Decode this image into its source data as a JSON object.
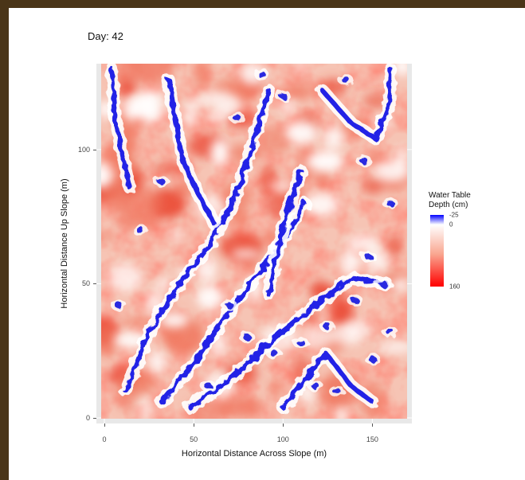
{
  "chart_data": {
    "type": "heatmap",
    "title": "Day: 42",
    "xlabel": "Horizontal Distance Across Slope (m)",
    "ylabel": "Horizontal Distance Up Slope (m)",
    "xlim": [
      0,
      165
    ],
    "ylim": [
      0,
      132
    ],
    "x_ticks": [
      0,
      50,
      100,
      150
    ],
    "y_ticks": [
      0,
      50,
      100
    ],
    "x_tick_labels": [
      "0",
      "50",
      "100",
      "150"
    ],
    "y_tick_labels": [
      "0",
      "50",
      "100"
    ],
    "grid": true,
    "legend": {
      "title": "Water Table\nDepth (cm)",
      "position": "right",
      "min": -25,
      "max": 160,
      "labels": [
        "-25",
        "0",
        "160"
      ],
      "label_values": [
        -25,
        0,
        160
      ],
      "color_low": "#0000ff",
      "color_mid": "#ffffff",
      "color_high": "#ff0000"
    },
    "channels": [
      {
        "points": [
          [
            12,
            10
          ],
          [
            25,
            32
          ],
          [
            40,
            48
          ],
          [
            58,
            64
          ],
          [
            72,
            80
          ],
          [
            82,
            100
          ],
          [
            92,
            122
          ]
        ]
      },
      {
        "points": [
          [
            32,
            6
          ],
          [
            52,
            22
          ],
          [
            68,
            38
          ],
          [
            84,
            52
          ],
          [
            100,
            66
          ],
          [
            112,
            80
          ]
        ]
      },
      {
        "points": [
          [
            48,
            4
          ],
          [
            70,
            14
          ],
          [
            92,
            28
          ],
          [
            118,
            42
          ],
          [
            138,
            52
          ],
          [
            158,
            50
          ]
        ]
      },
      {
        "points": [
          [
            122,
            122
          ],
          [
            138,
            110
          ],
          [
            152,
            104
          ],
          [
            160,
            118
          ],
          [
            160,
            130
          ]
        ]
      },
      {
        "points": [
          [
            62,
            72
          ],
          [
            52,
            84
          ],
          [
            44,
            96
          ],
          [
            40,
            110
          ],
          [
            36,
            126
          ]
        ]
      },
      {
        "points": [
          [
            92,
            46
          ],
          [
            96,
            60
          ],
          [
            102,
            76
          ],
          [
            110,
            92
          ]
        ]
      },
      {
        "points": [
          [
            100,
            4
          ],
          [
            112,
            14
          ],
          [
            124,
            24
          ],
          [
            138,
            12
          ],
          [
            150,
            6
          ]
        ]
      },
      {
        "points": [
          [
            4,
            130
          ],
          [
            6,
            112
          ],
          [
            10,
            98
          ],
          [
            14,
            86
          ]
        ]
      }
    ],
    "blue_patches": [
      [
        156,
        50
      ],
      [
        148,
        60
      ],
      [
        140,
        44
      ],
      [
        125,
        34
      ],
      [
        110,
        28
      ],
      [
        95,
        24
      ],
      [
        80,
        30
      ],
      [
        70,
        42
      ],
      [
        58,
        12
      ],
      [
        130,
        10
      ],
      [
        150,
        22
      ],
      [
        160,
        32
      ],
      [
        100,
        120
      ],
      [
        88,
        128
      ],
      [
        74,
        112
      ],
      [
        145,
        96
      ],
      [
        118,
        12
      ],
      [
        20,
        70
      ],
      [
        8,
        42
      ],
      [
        135,
        126
      ],
      [
        160,
        80
      ],
      [
        32,
        88
      ]
    ]
  }
}
